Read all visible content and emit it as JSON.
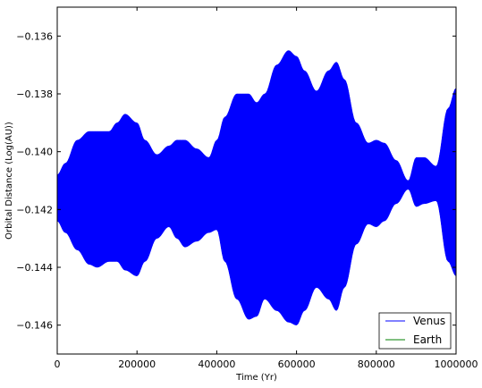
{
  "chart_data": {
    "type": "area",
    "xlabel": "Time (Yr)",
    "ylabel": "Orbital Distance (Log(AU))",
    "xlim": [
      0,
      1000000
    ],
    "ylim": [
      -0.147,
      -0.135
    ],
    "x_ticks": [
      0,
      200000,
      400000,
      600000,
      800000,
      1000000
    ],
    "x_tick_labels": [
      "0",
      "200000",
      "400000",
      "600000",
      "800000",
      "1000000"
    ],
    "y_ticks": [
      -0.146,
      -0.144,
      -0.142,
      -0.14,
      -0.138,
      -0.136
    ],
    "y_tick_labels": [
      "−0.146",
      "−0.144",
      "−0.142",
      "−0.140",
      "−0.138",
      "−0.136"
    ],
    "grid": false,
    "legend_position": "bottom-right",
    "series": [
      {
        "name": "Venus",
        "color": "#0000ff",
        "envelope": {
          "x": [
            0,
            20000,
            50000,
            80000,
            100000,
            130000,
            150000,
            170000,
            200000,
            220000,
            250000,
            280000,
            300000,
            320000,
            350000,
            380000,
            400000,
            420000,
            450000,
            480000,
            500000,
            520000,
            550000,
            580000,
            600000,
            620000,
            650000,
            680000,
            700000,
            720000,
            750000,
            780000,
            800000,
            820000,
            850000,
            880000,
            900000,
            920000,
            950000,
            980000,
            1000000
          ],
          "upper": [
            -0.1408,
            -0.1404,
            -0.1396,
            -0.1393,
            -0.1393,
            -0.1393,
            -0.139,
            -0.1387,
            -0.139,
            -0.1396,
            -0.1401,
            -0.1398,
            -0.1396,
            -0.1396,
            -0.1399,
            -0.1402,
            -0.1396,
            -0.1388,
            -0.138,
            -0.138,
            -0.1383,
            -0.138,
            -0.137,
            -0.1365,
            -0.1367,
            -0.1372,
            -0.1379,
            -0.1372,
            -0.1369,
            -0.1375,
            -0.139,
            -0.1397,
            -0.1396,
            -0.1397,
            -0.1403,
            -0.141,
            -0.1402,
            -0.1402,
            -0.1405,
            -0.1385,
            -0.1378
          ],
          "lower": [
            -0.1424,
            -0.1428,
            -0.1434,
            -0.1439,
            -0.144,
            -0.1438,
            -0.1438,
            -0.1441,
            -0.1443,
            -0.1438,
            -0.143,
            -0.1426,
            -0.143,
            -0.1433,
            -0.1431,
            -0.1428,
            -0.1427,
            -0.1438,
            -0.1451,
            -0.1458,
            -0.1457,
            -0.1451,
            -0.1455,
            -0.1459,
            -0.146,
            -0.1455,
            -0.1447,
            -0.1451,
            -0.1455,
            -0.1447,
            -0.1432,
            -0.1425,
            -0.1426,
            -0.1424,
            -0.1418,
            -0.1413,
            -0.1419,
            -0.1418,
            -0.1417,
            -0.1438,
            -0.1443
          ]
        }
      },
      {
        "name": "Earth",
        "color": "#008000"
      }
    ]
  }
}
